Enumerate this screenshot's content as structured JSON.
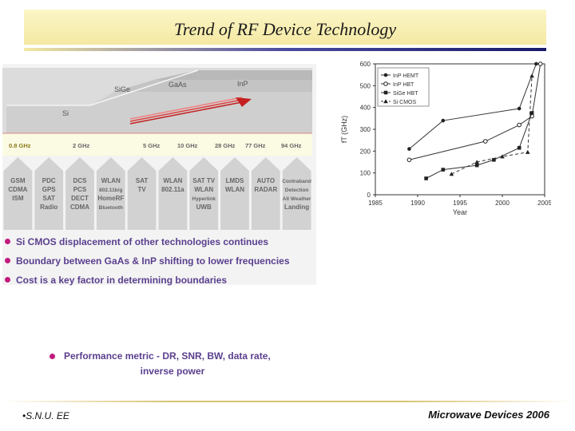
{
  "slide": {
    "title": "Trend of RF Device Technology",
    "footer_left": "•S.N.U. EE",
    "footer_right": "Microwave Devices 2006"
  },
  "spectrum": {
    "technologies": [
      "Si",
      "SiGe",
      "GaAs",
      "InP"
    ],
    "frequencies": [
      "0.8 GHz",
      "2 GHz",
      "5 GHz",
      "10 GHz",
      "28 GHz",
      "77 GHz",
      "94 GHz"
    ],
    "applications": [
      [
        "GSM",
        "CDMA",
        "ISM"
      ],
      [
        "PDC",
        "GPS",
        "SAT",
        "Radio"
      ],
      [
        "DCS",
        "PCS",
        "DECT",
        "CDMA"
      ],
      [
        "WLAN",
        "802.11b/g",
        "HomeRF",
        "Bluetooth"
      ],
      [
        "SAT",
        "TV"
      ],
      [
        "WLAN",
        "802.11a"
      ],
      [
        "SAT TV",
        "WLAN",
        "Hyperlink",
        "UWB"
      ],
      [
        "LMDS",
        "WLAN"
      ],
      [
        "AUTO",
        "RADAR"
      ],
      [
        "Contraband",
        "Detection",
        "All Weather",
        "Landing"
      ]
    ]
  },
  "bullets": [
    "Si CMOS displacement of other technologies continues",
    "Boundary between GaAs & InP shifting to lower frequencies",
    "Cost is a key factor in determining boundaries"
  ],
  "metric": {
    "line1": "Performance metric - DR, SNR, BW, data rate,",
    "line2": "inverse power"
  },
  "chart_data": {
    "type": "line",
    "xlabel": "Year",
    "ylabel": "fT (GHz)",
    "xlim": [
      1985,
      2005
    ],
    "ylim": [
      0,
      600
    ],
    "x_ticks": [
      "1985",
      "1990",
      "1995",
      "2000",
      "2005"
    ],
    "y_ticks": [
      "0",
      "100",
      "200",
      "300",
      "400",
      "500",
      "600"
    ],
    "legend_position": "top-left",
    "series": [
      {
        "name": "InP HEMT",
        "marker": "circle",
        "dash": "none",
        "points": [
          [
            1989,
            210
          ],
          [
            1993,
            340
          ],
          [
            2002,
            395
          ],
          [
            2004,
            600
          ]
        ]
      },
      {
        "name": "InP HBT",
        "marker": "circle-open",
        "dash": "none",
        "points": [
          [
            1989,
            160
          ],
          [
            1998,
            245
          ],
          [
            2002,
            320
          ],
          [
            2003.5,
            360
          ],
          [
            2004.5,
            600
          ]
        ]
      },
      {
        "name": "SiGe HBT",
        "marker": "square",
        "dash": "none",
        "points": [
          [
            1991,
            75
          ],
          [
            1993,
            115
          ],
          [
            1997,
            135
          ],
          [
            1999,
            160
          ],
          [
            2002,
            215
          ],
          [
            2003.5,
            375
          ]
        ]
      },
      {
        "name": "Si CMOS",
        "marker": "triangle",
        "dash": "dash",
        "points": [
          [
            1994,
            95
          ],
          [
            1997,
            150
          ],
          [
            2000,
            175
          ],
          [
            2003,
            195
          ],
          [
            2003.5,
            545
          ]
        ]
      }
    ]
  }
}
